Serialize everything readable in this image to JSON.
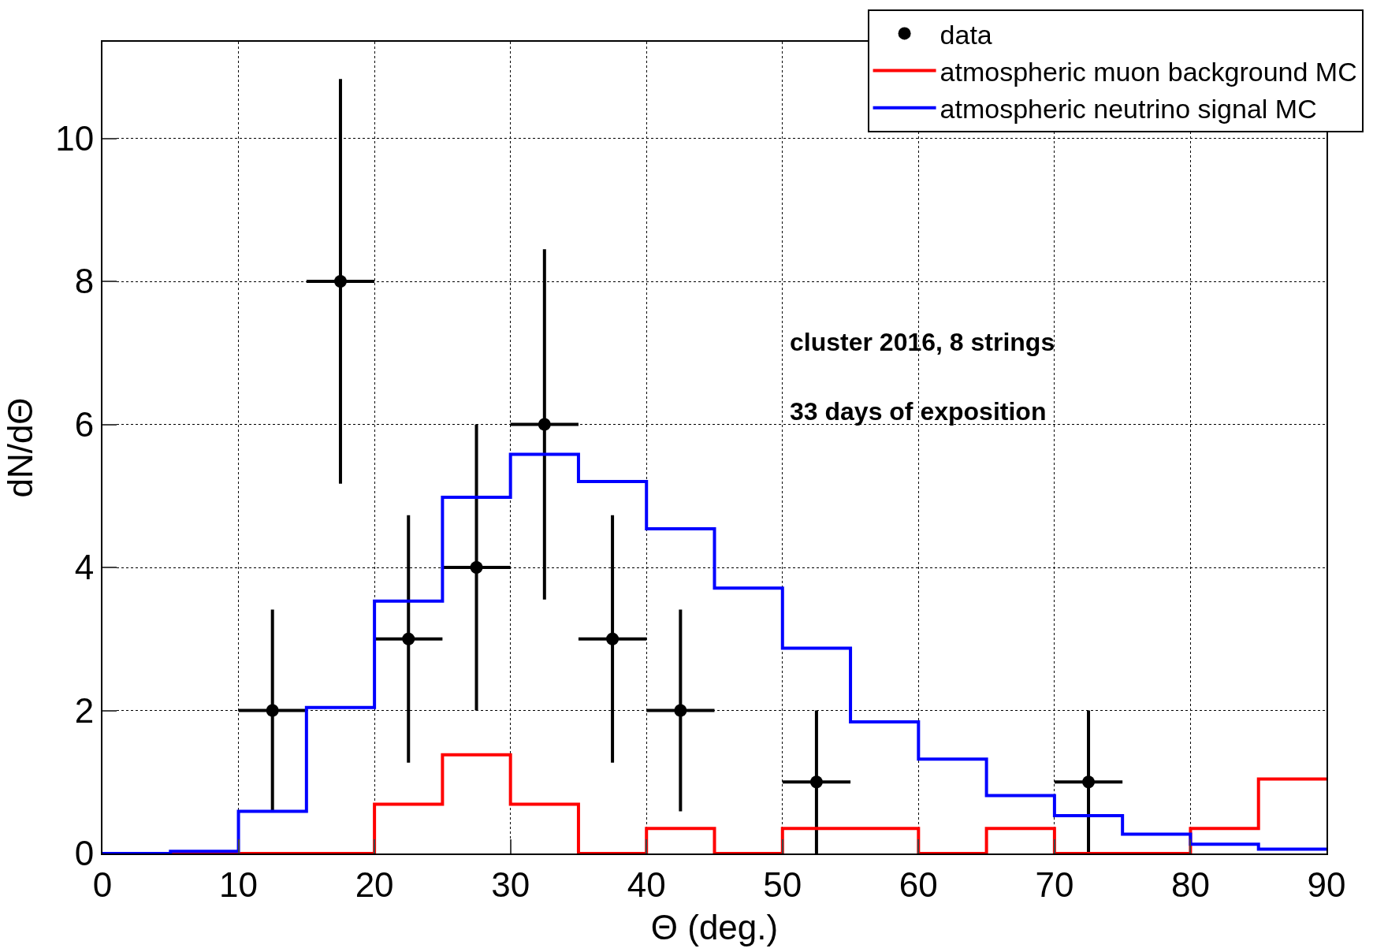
{
  "chart_data": {
    "type": "histogram",
    "xlabel": "Θ (deg.)",
    "ylabel": "dN/dΘ",
    "bins": [
      0,
      5,
      10,
      15,
      20,
      25,
      30,
      35,
      40,
      45,
      50,
      55,
      60,
      65,
      70,
      75,
      80,
      85,
      90
    ],
    "series": [
      {
        "name": "data",
        "type": "scatter",
        "color": "#000000",
        "marker": "circle",
        "x": [
          12.5,
          17.5,
          22.5,
          27.5,
          32.5,
          37.5,
          42.5,
          52.5,
          72.5
        ],
        "values": [
          2,
          8,
          3,
          4,
          6,
          3,
          2,
          1,
          1
        ],
        "errors": [
          1.41,
          2.83,
          1.73,
          2,
          2.45,
          1.73,
          1.41,
          1,
          1
        ],
        "xerrors": [
          2.5,
          2.5,
          2.5,
          2.5,
          2.5,
          2.5,
          2.5,
          2.5,
          2.5
        ]
      },
      {
        "name": "atmospheric muon background MC",
        "color": "#ff0000",
        "values": [
          0,
          0,
          0,
          0,
          0.69,
          1.38,
          0.69,
          0,
          0.35,
          0,
          0.35,
          0.35,
          0,
          0.35,
          0,
          0,
          0.35,
          1.04
        ]
      },
      {
        "name": "atmospheric neutrino signal MC",
        "color": "#0000ff",
        "values": [
          0,
          0.03,
          0.59,
          2.04,
          3.53,
          4.98,
          5.58,
          5.2,
          4.54,
          3.71,
          2.87,
          1.84,
          1.32,
          0.81,
          0.53,
          0.27,
          0.13,
          0.06
        ]
      }
    ],
    "annotations": [
      "cluster 2016, 8 strings",
      "33 days of exposition"
    ],
    "xlim": [
      0,
      90
    ],
    "xticks": [
      0,
      10,
      20,
      30,
      40,
      50,
      60,
      70,
      80,
      90
    ],
    "ylim": [
      0,
      11.35
    ],
    "yticks": [
      0,
      2,
      4,
      6,
      8,
      10
    ],
    "grid": true,
    "legend": "top right"
  }
}
